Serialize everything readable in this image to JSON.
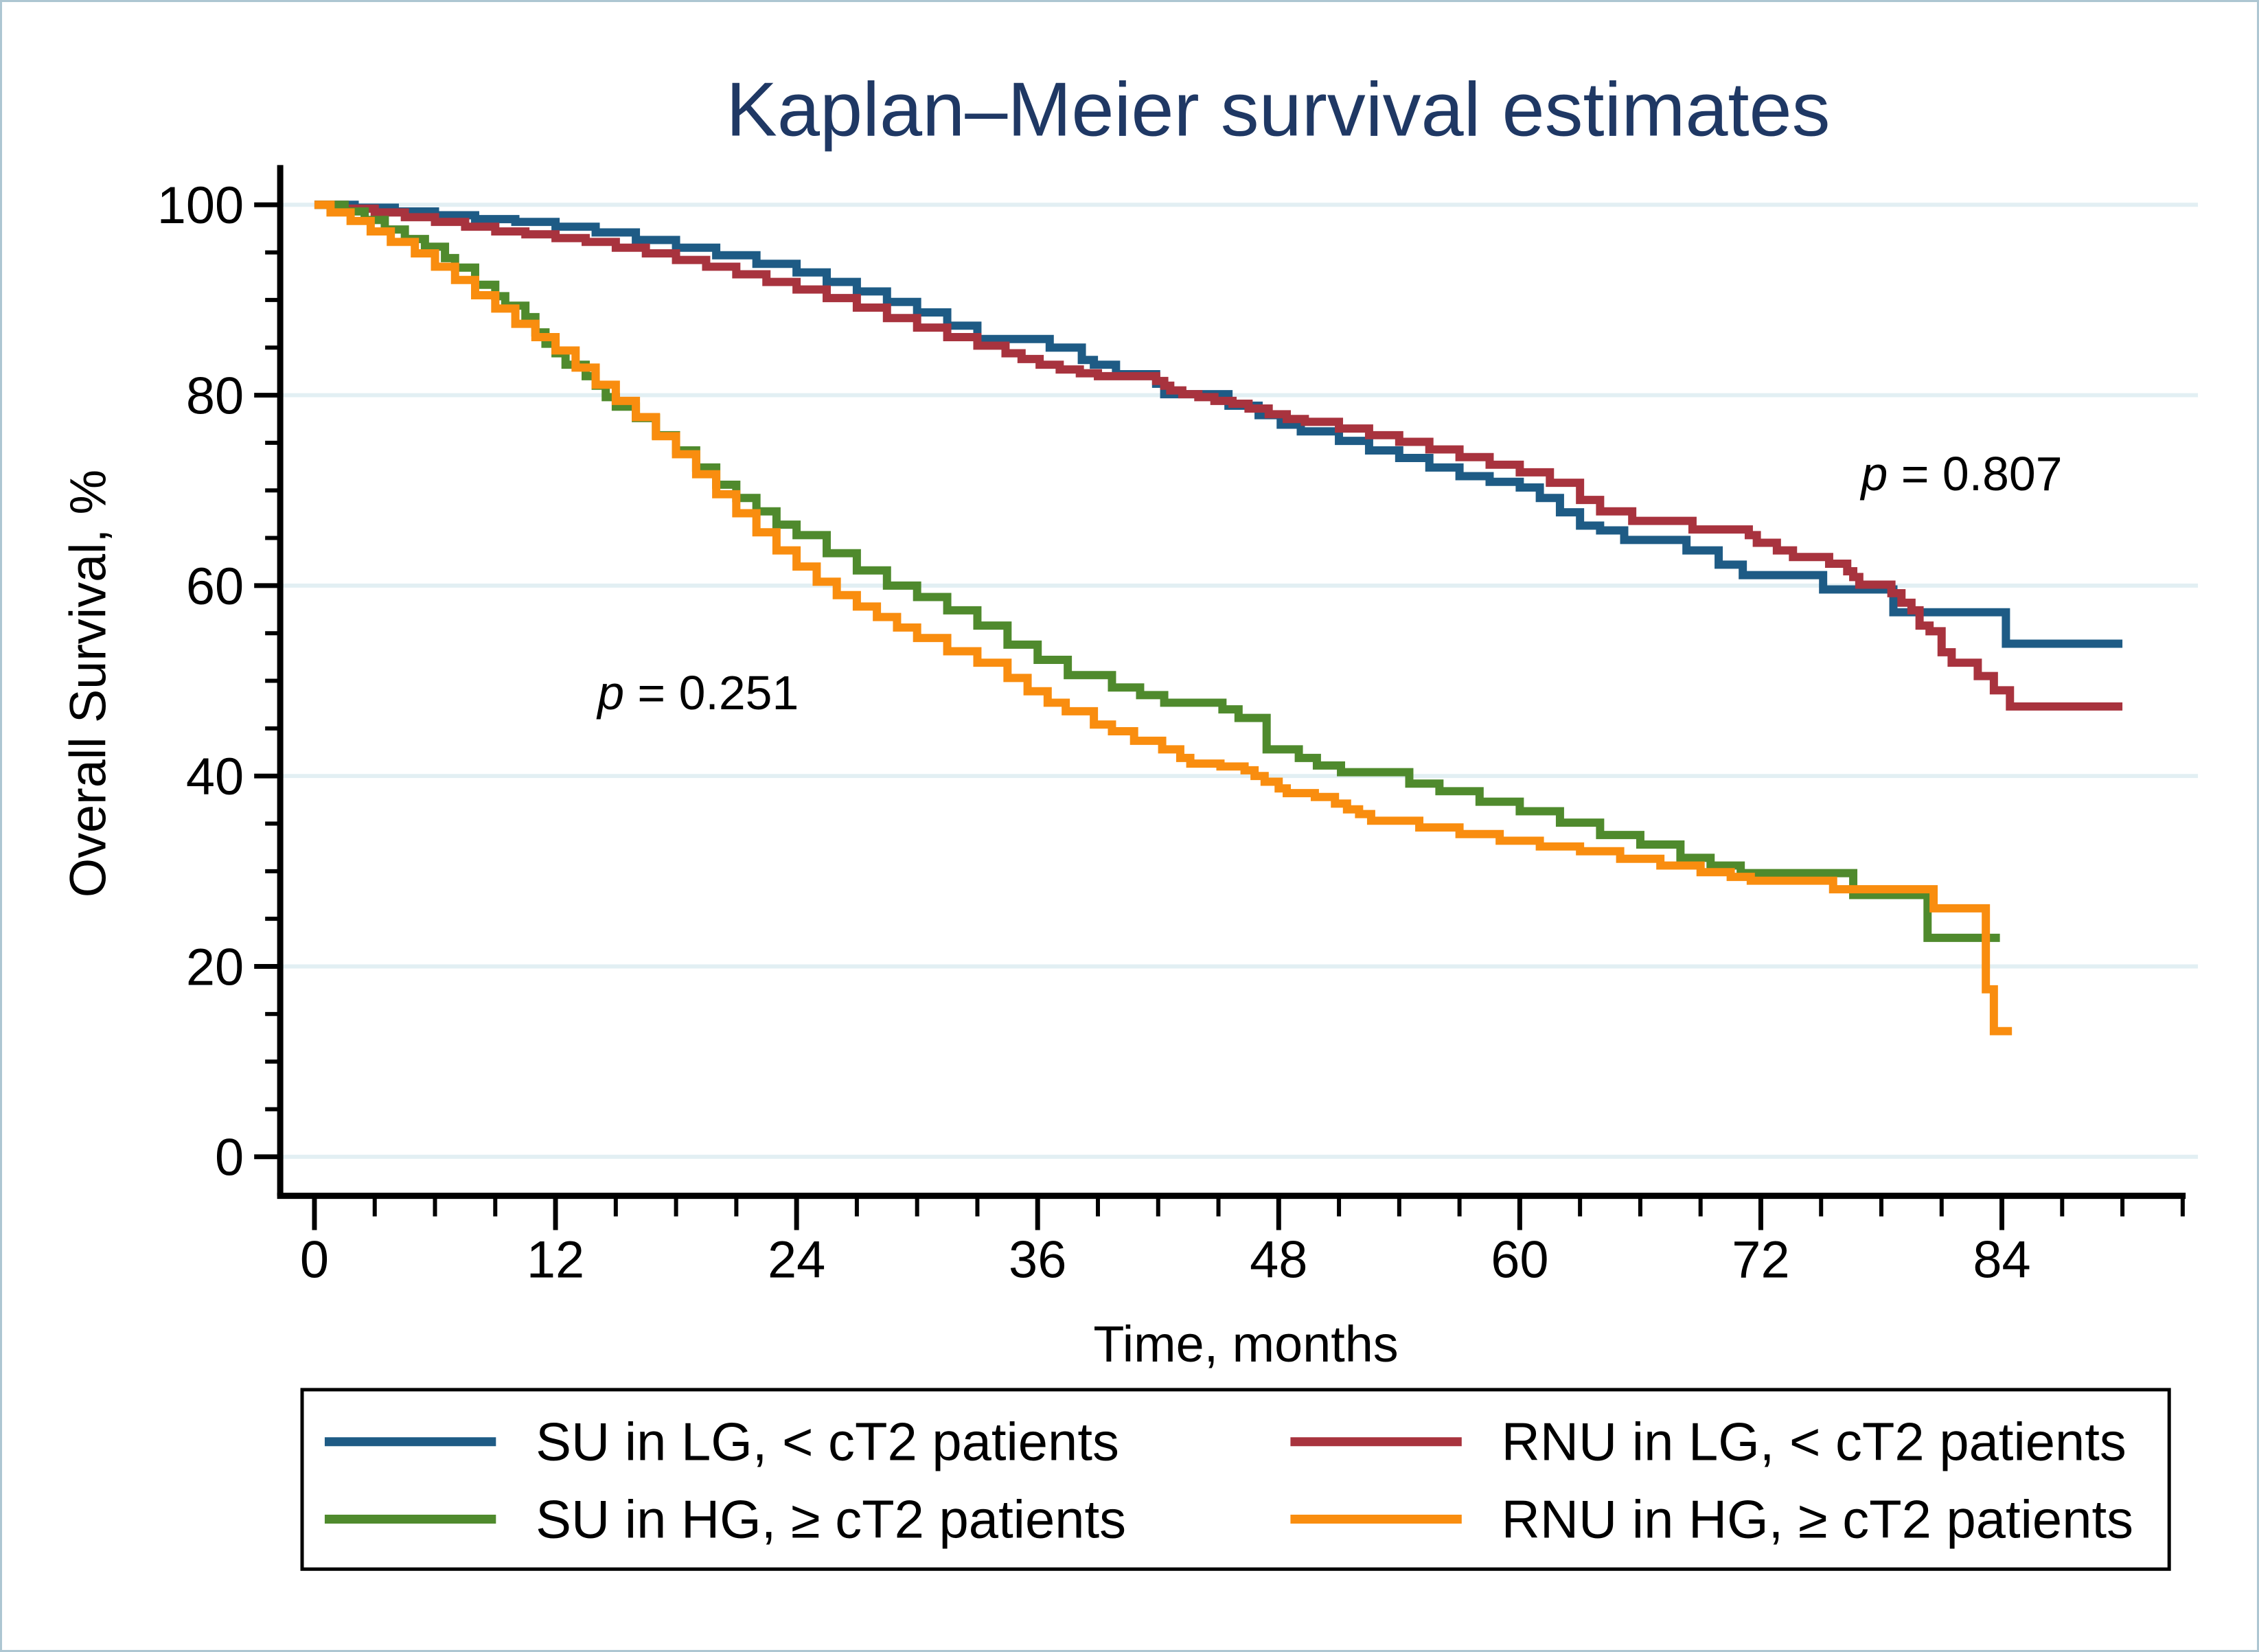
{
  "figure_title": "Kaplan–Meier survival estimates",
  "colors": {
    "title": "#1f3864",
    "axis": "#000000",
    "gridline": "#e2eff3",
    "frame": "#adc6d2",
    "legend_border": "#000000",
    "su_lg": "#1e5b85",
    "rnu_lg": "#a8333e",
    "su_hg": "#4f8a2d",
    "rnu_hg": "#f98d0f"
  },
  "chart_data": {
    "type": "line",
    "subtype": "kaplan-meier-step",
    "title": "Kaplan–Meier survival estimates",
    "xlabel": "Time, months",
    "ylabel": "Overall Survival, %",
    "xlim": [
      0,
      93
    ],
    "ylim": [
      0,
      100
    ],
    "x_major_ticks": [
      0,
      12,
      24,
      36,
      48,
      60,
      72,
      84
    ],
    "x_minor_interval": 3,
    "y_major_ticks": [
      0,
      20,
      40,
      60,
      80,
      100
    ],
    "y_minor_interval": 5,
    "grid": true,
    "gridline_values": [
      0,
      20,
      40,
      60,
      80,
      100
    ],
    "legend_position": "bottom",
    "annotations": [
      {
        "text": "p = 0.807",
        "x": 82,
        "y": 70
      },
      {
        "text": "p = 0.251",
        "x": 19.1,
        "y": 47
      }
    ],
    "series": [
      {
        "name": "SU in LG, < cT2 patients",
        "color": "#1e5b85",
        "end_x": 90,
        "points": [
          [
            0,
            100
          ],
          [
            2,
            99.7
          ],
          [
            4,
            99.3
          ],
          [
            6,
            98.9
          ],
          [
            8,
            98.5
          ],
          [
            10,
            98.2
          ],
          [
            12,
            97.7
          ],
          [
            14,
            97.1
          ],
          [
            16,
            96.3
          ],
          [
            18,
            95.5
          ],
          [
            20,
            94.7
          ],
          [
            22,
            93.8
          ],
          [
            24,
            92.9
          ],
          [
            25.5,
            91.9
          ],
          [
            27,
            90.9
          ],
          [
            28.5,
            89.8
          ],
          [
            30,
            88.7
          ],
          [
            31.5,
            87.3
          ],
          [
            33,
            85.9
          ],
          [
            36.6,
            85.0
          ],
          [
            38.2,
            83.7
          ],
          [
            38.8,
            83.2
          ],
          [
            39.9,
            82.2
          ],
          [
            41.9,
            81.2
          ],
          [
            42.3,
            80.1
          ],
          [
            45.5,
            78.9
          ],
          [
            47,
            77.9
          ],
          [
            48.1,
            76.9
          ],
          [
            49.1,
            76.2
          ],
          [
            51,
            75.2
          ],
          [
            52.5,
            74.2
          ],
          [
            54,
            73.4
          ],
          [
            55.5,
            72.4
          ],
          [
            57,
            71.5
          ],
          [
            58.5,
            70.9
          ],
          [
            60,
            70.3
          ],
          [
            61,
            69.2
          ],
          [
            62,
            67.7
          ],
          [
            63,
            66.3
          ],
          [
            64,
            65.8
          ],
          [
            65.2,
            64.8
          ],
          [
            68.3,
            63.7
          ],
          [
            69.9,
            62.2
          ],
          [
            71.1,
            61.1
          ],
          [
            75.1,
            59.6
          ],
          [
            78.6,
            57.2
          ],
          [
            84.2,
            53.9
          ]
        ]
      },
      {
        "name": "RNU in LG, < cT2 patients",
        "color": "#a8333e",
        "end_x": 90,
        "points": [
          [
            0,
            100
          ],
          [
            1.5,
            99.6
          ],
          [
            3,
            99.2
          ],
          [
            4.5,
            98.7
          ],
          [
            6,
            98.2
          ],
          [
            7.5,
            97.7
          ],
          [
            9,
            97.2
          ],
          [
            10.5,
            96.9
          ],
          [
            12,
            96.5
          ],
          [
            13.5,
            96.1
          ],
          [
            15,
            95.5
          ],
          [
            16.5,
            94.9
          ],
          [
            18,
            94.2
          ],
          [
            19.5,
            93.5
          ],
          [
            21,
            92.7
          ],
          [
            22.5,
            91.9
          ],
          [
            24,
            91.1
          ],
          [
            25.5,
            90.2
          ],
          [
            27,
            89.2
          ],
          [
            28.5,
            88.1
          ],
          [
            30,
            87.1
          ],
          [
            31.5,
            86.1
          ],
          [
            33,
            85.2
          ],
          [
            34.4,
            84.4
          ],
          [
            35.2,
            83.8
          ],
          [
            36.1,
            83.2
          ],
          [
            37.1,
            82.7
          ],
          [
            38.1,
            82.3
          ],
          [
            39,
            82.0
          ],
          [
            41.9,
            81.5
          ],
          [
            42.3,
            81.0
          ],
          [
            42.6,
            80.5
          ],
          [
            43.2,
            80.1
          ],
          [
            44,
            79.8
          ],
          [
            44.8,
            79.4
          ],
          [
            45.7,
            79.1
          ],
          [
            46.5,
            78.6
          ],
          [
            47.5,
            78.0
          ],
          [
            48.4,
            77.5
          ],
          [
            49.3,
            77.2
          ],
          [
            51,
            76.5
          ],
          [
            52.5,
            75.8
          ],
          [
            54,
            75.1
          ],
          [
            55.5,
            74.3
          ],
          [
            57,
            73.5
          ],
          [
            58.5,
            72.7
          ],
          [
            60,
            71.9
          ],
          [
            61.5,
            70.8
          ],
          [
            63,
            69.0
          ],
          [
            64,
            67.8
          ],
          [
            65.6,
            66.8
          ],
          [
            68.6,
            65.9
          ],
          [
            71.4,
            65.3
          ],
          [
            71.8,
            64.5
          ],
          [
            72.8,
            63.7
          ],
          [
            73.6,
            63.0
          ],
          [
            75.4,
            62.3
          ],
          [
            76.3,
            61.5
          ],
          [
            76.6,
            60.9
          ],
          [
            76.9,
            60.1
          ],
          [
            78.5,
            59.2
          ],
          [
            79,
            58.2
          ],
          [
            79.5,
            57.4
          ],
          [
            79.9,
            55.8
          ],
          [
            80.4,
            55.2
          ],
          [
            81,
            53.0
          ],
          [
            81.5,
            51.9
          ],
          [
            82.8,
            50.5
          ],
          [
            83.6,
            49.0
          ],
          [
            84.4,
            47.3
          ]
        ]
      },
      {
        "name": "SU in HG, ≥ cT2 patients",
        "color": "#4f8a2d",
        "end_x": 83.9,
        "points": [
          [
            0,
            100
          ],
          [
            1.5,
            99.3
          ],
          [
            2.5,
            98.4
          ],
          [
            3.5,
            97.4
          ],
          [
            4.5,
            96.4
          ],
          [
            5.5,
            95.6
          ],
          [
            6.5,
            94.4
          ],
          [
            7,
            93.4
          ],
          [
            8,
            91.6
          ],
          [
            9,
            90.4
          ],
          [
            9.5,
            89.4
          ],
          [
            10.5,
            88.2
          ],
          [
            11,
            86.6
          ],
          [
            11.5,
            85.4
          ],
          [
            12,
            84.4
          ],
          [
            12.5,
            83.2
          ],
          [
            13.5,
            82.0
          ],
          [
            14,
            81.0
          ],
          [
            14.5,
            79.8
          ],
          [
            15,
            78.8
          ],
          [
            16,
            77.6
          ],
          [
            17,
            75.8
          ],
          [
            18,
            74.2
          ],
          [
            19,
            72.4
          ],
          [
            20,
            70.6
          ],
          [
            21,
            69.2
          ],
          [
            22,
            67.8
          ],
          [
            23,
            66.4
          ],
          [
            24,
            65.3
          ],
          [
            25.5,
            63.4
          ],
          [
            27,
            61.6
          ],
          [
            28.5,
            60.0
          ],
          [
            30,
            58.8
          ],
          [
            31.5,
            57.4
          ],
          [
            33,
            55.8
          ],
          [
            34.5,
            53.8
          ],
          [
            36,
            52.2
          ],
          [
            37.5,
            50.6
          ],
          [
            39.7,
            49.3
          ],
          [
            41.1,
            48.5
          ],
          [
            42.3,
            47.7
          ],
          [
            45.2,
            47.0
          ],
          [
            46,
            46.1
          ],
          [
            47.4,
            42.8
          ],
          [
            49,
            41.9
          ],
          [
            49.9,
            41.1
          ],
          [
            51.1,
            40.4
          ],
          [
            54.5,
            39.2
          ],
          [
            56,
            38.4
          ],
          [
            58,
            37.3
          ],
          [
            60,
            36.3
          ],
          [
            62,
            35.1
          ],
          [
            64,
            33.8
          ],
          [
            66,
            32.8
          ],
          [
            68,
            31.4
          ],
          [
            69.5,
            30.6
          ],
          [
            71,
            29.8
          ],
          [
            76.6,
            27.5
          ],
          [
            80.3,
            23.0
          ]
        ]
      },
      {
        "name": "RNU in HG, ≥ cT2 patients",
        "color": "#f98d0f",
        "end_x": 84.5,
        "points": [
          [
            0,
            100
          ],
          [
            0.8,
            99.2
          ],
          [
            1.8,
            98.3
          ],
          [
            2.8,
            97.2
          ],
          [
            3.8,
            96.1
          ],
          [
            5,
            94.9
          ],
          [
            6,
            93.5
          ],
          [
            7,
            92.1
          ],
          [
            8,
            90.5
          ],
          [
            9,
            89.1
          ],
          [
            10,
            87.5
          ],
          [
            11,
            86.1
          ],
          [
            12,
            84.7
          ],
          [
            13,
            82.9
          ],
          [
            14,
            81.1
          ],
          [
            15,
            79.4
          ],
          [
            16,
            77.7
          ],
          [
            17,
            75.7
          ],
          [
            18,
            73.8
          ],
          [
            19,
            71.7
          ],
          [
            20,
            69.6
          ],
          [
            21,
            67.6
          ],
          [
            22,
            65.6
          ],
          [
            23,
            63.7
          ],
          [
            24,
            62.0
          ],
          [
            25,
            60.4
          ],
          [
            26,
            59.0
          ],
          [
            27,
            57.8
          ],
          [
            28,
            56.7
          ],
          [
            29,
            55.6
          ],
          [
            30,
            54.5
          ],
          [
            31.5,
            53.1
          ],
          [
            33,
            51.9
          ],
          [
            34.5,
            50.3
          ],
          [
            35.5,
            48.9
          ],
          [
            36.5,
            47.7
          ],
          [
            37.4,
            46.8
          ],
          [
            38.8,
            45.4
          ],
          [
            39.7,
            44.7
          ],
          [
            40.8,
            43.7
          ],
          [
            42.2,
            42.8
          ],
          [
            43.1,
            41.9
          ],
          [
            43.6,
            41.3
          ],
          [
            45.1,
            41.0
          ],
          [
            46.3,
            40.6
          ],
          [
            46.8,
            40.0
          ],
          [
            47.3,
            39.4
          ],
          [
            48,
            38.7
          ],
          [
            48.4,
            38.2
          ],
          [
            49.8,
            37.8
          ],
          [
            50.8,
            37.1
          ],
          [
            51.4,
            36.5
          ],
          [
            52,
            36.0
          ],
          [
            52.6,
            35.3
          ],
          [
            55,
            34.6
          ],
          [
            57,
            33.9
          ],
          [
            59,
            33.2
          ],
          [
            61,
            32.6
          ],
          [
            63,
            32.1
          ],
          [
            65,
            31.3
          ],
          [
            67,
            30.6
          ],
          [
            69,
            29.9
          ],
          [
            70.5,
            29.4
          ],
          [
            71.5,
            29.0
          ],
          [
            75.6,
            28.1
          ],
          [
            80.6,
            26.1
          ],
          [
            83.2,
            17.6
          ],
          [
            83.6,
            13.2
          ]
        ]
      }
    ]
  },
  "legend": {
    "entries": [
      {
        "label": "SU in LG, < cT2 patients",
        "series_index": 0
      },
      {
        "label": "RNU in LG, < cT2 patients",
        "series_index": 1
      },
      {
        "label": "SU in HG, ≥ cT2 patients",
        "series_index": 2
      },
      {
        "label": "RNU in HG, ≥ cT2 patients",
        "series_index": 3
      }
    ]
  }
}
